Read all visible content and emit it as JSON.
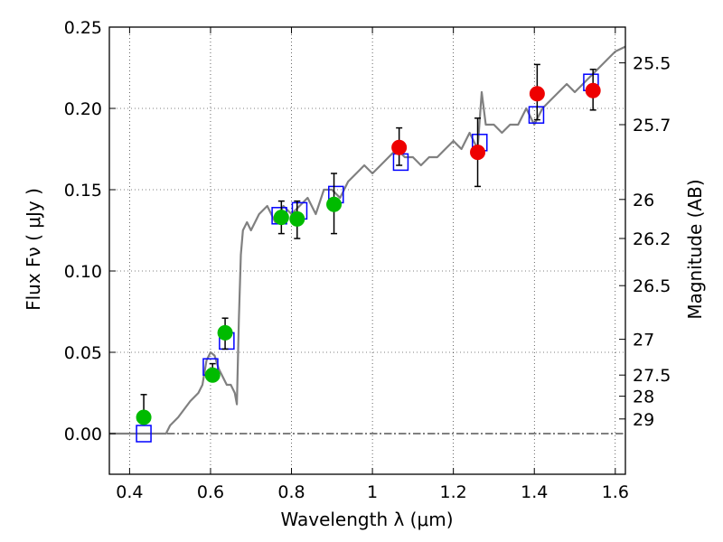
{
  "chart_data": {
    "type": "scatter",
    "xlabel": "Wavelength  λ (μm)",
    "ylabel_left": "Flux  Fν  ( μJy )",
    "ylabel_right": "Magnitude (AB)",
    "xlim": [
      0.35,
      1.625
    ],
    "ylim": [
      -0.025,
      0.25
    ],
    "x_ticks": [
      0.4,
      0.6,
      0.8,
      1.0,
      1.2,
      1.4,
      1.6
    ],
    "x_tick_labels": [
      "0.4",
      "0.6",
      "0.8",
      "1",
      "1.2",
      "1.4",
      "1.6"
    ],
    "y_ticks": [
      0.0,
      0.05,
      0.1,
      0.15,
      0.2,
      0.25
    ],
    "y_tick_labels": [
      "0.00",
      "0.05",
      "0.10",
      "0.15",
      "0.20",
      "0.25"
    ],
    "mag_ticks": [
      {
        "label": "25.5",
        "flux": 0.228
      },
      {
        "label": "25.7",
        "flux": 0.19
      },
      {
        "label": "26",
        "flux": 0.144
      },
      {
        "label": "26.2",
        "flux": 0.12
      },
      {
        "label": "26.5",
        "flux": 0.091
      },
      {
        "label": "27",
        "flux": 0.058
      },
      {
        "label": "27.5",
        "flux": 0.036
      },
      {
        "label": "28",
        "flux": 0.023
      },
      {
        "label": "29",
        "flux": 0.009
      }
    ],
    "grid": true,
    "colors": {
      "spectrum": "#808080",
      "green_points": "#00bb00",
      "red_points": "#ee0000",
      "model_boxes": "#0000ff",
      "error_bars": "#000000"
    },
    "spectrum": {
      "x": [
        0.35,
        0.49,
        0.5,
        0.52,
        0.55,
        0.57,
        0.58,
        0.59,
        0.6,
        0.61,
        0.62,
        0.63,
        0.64,
        0.65,
        0.66,
        0.665,
        0.67,
        0.675,
        0.68,
        0.69,
        0.7,
        0.72,
        0.74,
        0.76,
        0.78,
        0.8,
        0.82,
        0.84,
        0.86,
        0.88,
        0.9,
        0.92,
        0.94,
        0.96,
        0.98,
        1.0,
        1.02,
        1.04,
        1.06,
        1.08,
        1.1,
        1.12,
        1.14,
        1.16,
        1.18,
        1.2,
        1.22,
        1.24,
        1.26,
        1.27,
        1.28,
        1.3,
        1.32,
        1.34,
        1.36,
        1.38,
        1.4,
        1.42,
        1.44,
        1.46,
        1.48,
        1.5,
        1.52,
        1.54,
        1.56,
        1.58,
        1.6,
        1.625
      ],
      "y": [
        0.0,
        0.0,
        0.005,
        0.01,
        0.02,
        0.025,
        0.03,
        0.045,
        0.05,
        0.048,
        0.04,
        0.035,
        0.03,
        0.03,
        0.025,
        0.018,
        0.07,
        0.11,
        0.125,
        0.13,
        0.125,
        0.135,
        0.14,
        0.13,
        0.14,
        0.135,
        0.14,
        0.145,
        0.135,
        0.15,
        0.15,
        0.145,
        0.155,
        0.16,
        0.165,
        0.16,
        0.165,
        0.17,
        0.175,
        0.17,
        0.17,
        0.165,
        0.17,
        0.17,
        0.175,
        0.18,
        0.175,
        0.185,
        0.175,
        0.21,
        0.19,
        0.19,
        0.185,
        0.19,
        0.19,
        0.2,
        0.19,
        0.2,
        0.205,
        0.21,
        0.215,
        0.21,
        0.215,
        0.22,
        0.225,
        0.23,
        0.235,
        0.238
      ]
    },
    "series": [
      {
        "color": "green",
        "x": [
          0.435,
          0.605,
          0.636,
          0.775,
          0.814,
          0.905
        ],
        "y": [
          0.01,
          0.036,
          0.062,
          0.133,
          0.132,
          0.141
        ],
        "yerr_low": [
          0.01,
          0.036,
          0.052,
          0.123,
          0.12,
          0.123
        ],
        "yerr_high": [
          0.024,
          0.043,
          0.071,
          0.143,
          0.143,
          0.16
        ]
      },
      {
        "color": "red",
        "x": [
          1.066,
          1.26,
          1.407,
          1.545
        ],
        "y": [
          0.176,
          0.173,
          0.209,
          0.211
        ],
        "yerr_low": [
          0.165,
          0.152,
          0.193,
          0.199
        ],
        "yerr_high": [
          0.188,
          0.194,
          0.227,
          0.224
        ]
      }
    ],
    "model_boxes": {
      "x": [
        0.435,
        0.6,
        0.64,
        0.77,
        0.82,
        0.91,
        1.07,
        1.265,
        1.405,
        1.54
      ],
      "y": [
        0.0,
        0.041,
        0.057,
        0.134,
        0.137,
        0.147,
        0.167,
        0.179,
        0.196,
        0.216
      ]
    }
  }
}
